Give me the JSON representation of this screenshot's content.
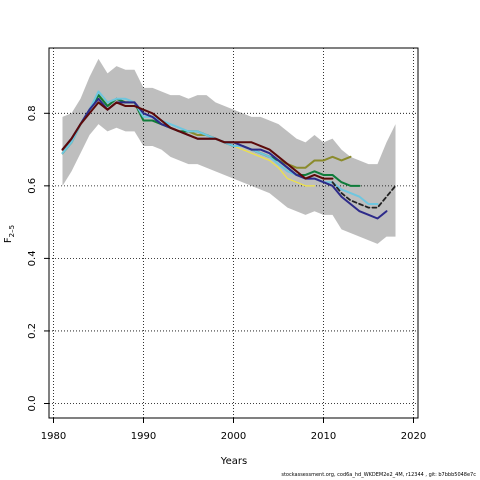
{
  "chart_data": {
    "type": "line",
    "xlabel": "Years",
    "ylabel": "F",
    "ylabel_sub": "2–5",
    "xlim": [
      1979.5,
      2020.5
    ],
    "ylim": [
      -0.04,
      0.98
    ],
    "x_ticks": [
      1980,
      1990,
      2000,
      2010,
      2020
    ],
    "y_ticks": [
      0.0,
      0.2,
      0.4,
      0.6,
      0.8
    ],
    "grid": "dotted",
    "confidence_band": {
      "color": "#bebebe",
      "x": [
        1981,
        1982,
        1983,
        1984,
        1985,
        1986,
        1987,
        1988,
        1989,
        1990,
        1991,
        1992,
        1993,
        1994,
        1995,
        1996,
        1997,
        1998,
        1999,
        2000,
        2001,
        2002,
        2003,
        2004,
        2005,
        2006,
        2007,
        2008,
        2009,
        2010,
        2011,
        2012,
        2013,
        2014,
        2015,
        2016,
        2017,
        2018
      ],
      "upper": [
        0.79,
        0.8,
        0.84,
        0.9,
        0.95,
        0.91,
        0.93,
        0.92,
        0.92,
        0.87,
        0.87,
        0.86,
        0.85,
        0.85,
        0.84,
        0.85,
        0.85,
        0.83,
        0.82,
        0.81,
        0.8,
        0.79,
        0.79,
        0.78,
        0.77,
        0.75,
        0.73,
        0.72,
        0.74,
        0.72,
        0.73,
        0.7,
        0.68,
        0.67,
        0.66,
        0.66,
        0.72,
        0.77
      ],
      "lower": [
        0.6,
        0.64,
        0.69,
        0.74,
        0.77,
        0.75,
        0.76,
        0.75,
        0.75,
        0.71,
        0.71,
        0.7,
        0.68,
        0.67,
        0.66,
        0.66,
        0.65,
        0.64,
        0.63,
        0.62,
        0.61,
        0.6,
        0.59,
        0.58,
        0.56,
        0.54,
        0.53,
        0.52,
        0.53,
        0.52,
        0.52,
        0.48,
        0.47,
        0.46,
        0.45,
        0.44,
        0.46,
        0.46
      ]
    },
    "series": [
      {
        "color": "#f0e442",
        "width": 1.2,
        "dash": "",
        "x": [
          1981,
          1982,
          1983,
          1984,
          1985,
          1986,
          1987,
          1988,
          1989,
          1990,
          1991,
          1992,
          1993,
          1994,
          1995,
          1996,
          1997,
          1998,
          1999,
          2000,
          2001,
          2002,
          2003,
          2004,
          2005,
          2006,
          2007,
          2008,
          2009
        ],
        "y": [
          0.69,
          0.72,
          0.77,
          0.81,
          0.85,
          0.83,
          0.84,
          0.83,
          0.83,
          0.79,
          0.79,
          0.77,
          0.76,
          0.75,
          0.75,
          0.74,
          0.74,
          0.73,
          0.72,
          0.71,
          0.7,
          0.69,
          0.68,
          0.67,
          0.65,
          0.62,
          0.61,
          0.6,
          0.6
        ]
      },
      {
        "color": "#8b8b2c",
        "width": 2,
        "dash": "",
        "x": [
          1981,
          1982,
          1983,
          1984,
          1985,
          1986,
          1987,
          1988,
          1989,
          1990,
          1991,
          1992,
          1993,
          1994,
          1995,
          1996,
          1997,
          1998,
          1999,
          2000,
          2001,
          2002,
          2003,
          2004,
          2005,
          2006,
          2007,
          2008,
          2009,
          2010,
          2011,
          2012,
          2013
        ],
        "y": [
          0.69,
          0.72,
          0.77,
          0.81,
          0.85,
          0.82,
          0.84,
          0.83,
          0.83,
          0.78,
          0.78,
          0.77,
          0.76,
          0.75,
          0.75,
          0.74,
          0.74,
          0.73,
          0.72,
          0.71,
          0.71,
          0.7,
          0.69,
          0.68,
          0.67,
          0.66,
          0.65,
          0.65,
          0.67,
          0.67,
          0.68,
          0.67,
          0.68
        ]
      },
      {
        "color": "#0e7c3a",
        "width": 2,
        "dash": "",
        "x": [
          1981,
          1982,
          1983,
          1984,
          1985,
          1986,
          1987,
          1988,
          1989,
          1990,
          1991,
          1992,
          1993,
          1994,
          1995,
          1996,
          1997,
          1998,
          1999,
          2000,
          2001,
          2002,
          2003,
          2004,
          2005,
          2006,
          2007,
          2008,
          2009,
          2010,
          2011,
          2012,
          2013,
          2014
        ],
        "y": [
          0.69,
          0.72,
          0.77,
          0.81,
          0.85,
          0.82,
          0.84,
          0.83,
          0.83,
          0.78,
          0.78,
          0.77,
          0.76,
          0.75,
          0.75,
          0.75,
          0.74,
          0.73,
          0.72,
          0.71,
          0.71,
          0.7,
          0.69,
          0.68,
          0.67,
          0.65,
          0.63,
          0.63,
          0.64,
          0.63,
          0.63,
          0.61,
          0.6,
          0.6
        ]
      },
      {
        "color": "#6ec6df",
        "width": 2,
        "dash": "",
        "x": [
          1981,
          1982,
          1983,
          1984,
          1985,
          1986,
          1987,
          1988,
          1989,
          1990,
          1991,
          1992,
          1993,
          1994,
          1995,
          1996,
          1997,
          1998,
          1999,
          2000,
          2001,
          2002,
          2003,
          2004,
          2005,
          2006,
          2007,
          2008,
          2009,
          2010,
          2011,
          2012,
          2013,
          2014,
          2015,
          2016
        ],
        "y": [
          0.69,
          0.72,
          0.77,
          0.81,
          0.86,
          0.83,
          0.84,
          0.84,
          0.83,
          0.79,
          0.79,
          0.78,
          0.77,
          0.76,
          0.75,
          0.75,
          0.74,
          0.73,
          0.72,
          0.71,
          0.71,
          0.7,
          0.69,
          0.68,
          0.66,
          0.64,
          0.63,
          0.62,
          0.62,
          0.61,
          0.61,
          0.59,
          0.58,
          0.57,
          0.55,
          0.55
        ]
      },
      {
        "color": "#2d2a8a",
        "width": 2,
        "dash": "",
        "x": [
          1981,
          1982,
          1983,
          1984,
          1985,
          1986,
          1987,
          1988,
          1989,
          1990,
          1991,
          1992,
          1993,
          1994,
          1995,
          1996,
          1997,
          1998,
          1999,
          2000,
          2001,
          2002,
          2003,
          2004,
          2005,
          2006,
          2007,
          2008,
          2009,
          2010,
          2011,
          2012,
          2013,
          2014,
          2015,
          2016,
          2017
        ],
        "y": [
          0.7,
          0.73,
          0.77,
          0.81,
          0.84,
          0.81,
          0.83,
          0.83,
          0.83,
          0.8,
          0.79,
          0.77,
          0.76,
          0.75,
          0.74,
          0.73,
          0.73,
          0.73,
          0.72,
          0.72,
          0.71,
          0.7,
          0.7,
          0.69,
          0.67,
          0.65,
          0.63,
          0.62,
          0.62,
          0.61,
          0.6,
          0.57,
          0.55,
          0.53,
          0.52,
          0.51,
          0.53
        ]
      },
      {
        "color": "#5c0a0a",
        "width": 2,
        "dash": "",
        "x": [
          1981,
          1982,
          1983,
          1984,
          1985,
          1986,
          1987,
          1988,
          1989,
          1990,
          1991,
          1992,
          1993,
          1994,
          1995,
          1996,
          1997,
          1998,
          1999,
          2000,
          2001,
          2002,
          2003,
          2004,
          2005,
          2006,
          2007,
          2008,
          2009,
          2010,
          2011
        ],
        "y": [
          0.7,
          0.73,
          0.77,
          0.8,
          0.83,
          0.81,
          0.83,
          0.82,
          0.82,
          0.81,
          0.8,
          0.78,
          0.76,
          0.75,
          0.74,
          0.73,
          0.73,
          0.73,
          0.72,
          0.72,
          0.72,
          0.72,
          0.71,
          0.7,
          0.68,
          0.66,
          0.64,
          0.62,
          0.63,
          0.62,
          0.62
        ]
      },
      {
        "color": "#222222",
        "width": 1.8,
        "dash": "4,3",
        "x": [
          2011,
          2012,
          2013,
          2014,
          2015,
          2016,
          2017,
          2018
        ],
        "y": [
          0.61,
          0.58,
          0.56,
          0.55,
          0.54,
          0.54,
          0.57,
          0.6
        ]
      }
    ]
  },
  "footnote": "stockassessment.org,  cod6a_hd_WKDEM2e2_4M,  r12344 ,  git: b7bbb5048e7c"
}
